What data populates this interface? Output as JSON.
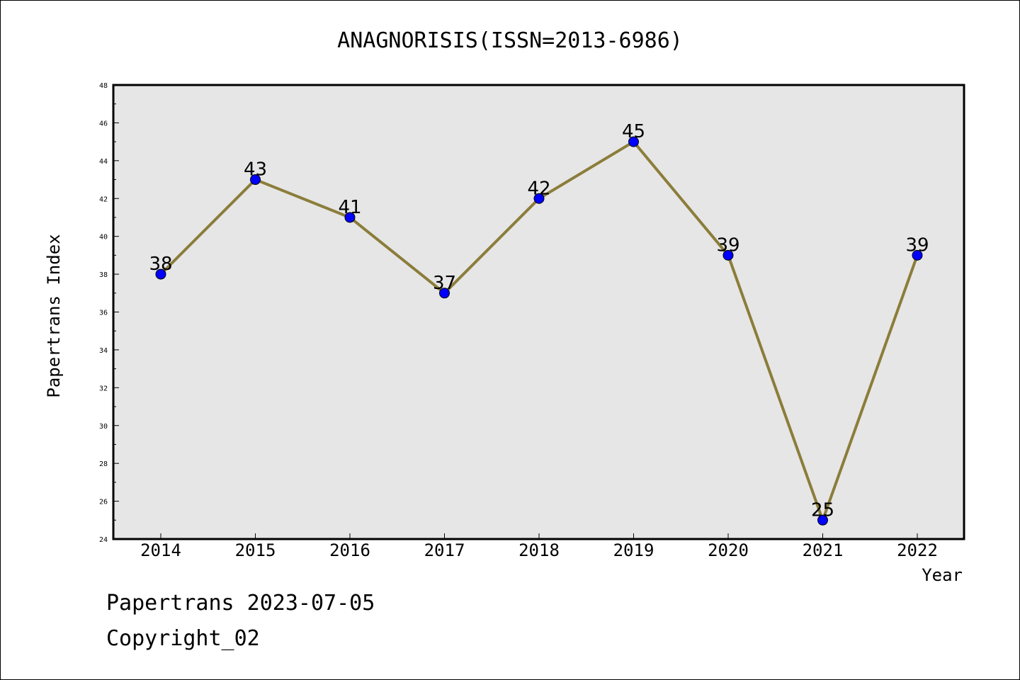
{
  "chart_data": {
    "type": "line",
    "title": "ANAGNORISIS(ISSN=2013-6986)",
    "xlabel": "Year",
    "ylabel": "Papertrans Index",
    "categories": [
      "2014",
      "2015",
      "2016",
      "2017",
      "2018",
      "2019",
      "2020",
      "2021",
      "2022"
    ],
    "series": [
      {
        "values": [
          38,
          43,
          41,
          37,
          42,
          45,
          39,
          25,
          39
        ]
      }
    ],
    "ylim": [
      24,
      48
    ],
    "y_ticks": [
      "24",
      "26",
      "28",
      "30",
      "32",
      "34",
      "36",
      "38",
      "40",
      "42",
      "44",
      "46",
      "48"
    ],
    "data_labels": [
      "38",
      "43",
      "41",
      "37",
      "42",
      "45",
      "39",
      "25",
      "39"
    ],
    "grid": false,
    "colors": {
      "line": "#8b7d3a",
      "marker": "#0000ff",
      "plot_background": "#e6e6e6"
    }
  },
  "footer": {
    "date_text": "Papertrans 2023-07-05",
    "copyright_text": "Copyright_02"
  }
}
